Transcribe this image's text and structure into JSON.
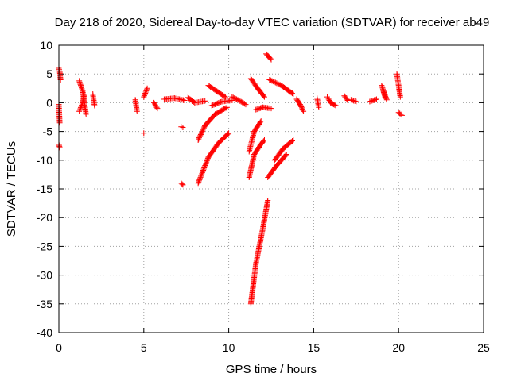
{
  "chart_data": {
    "type": "scatter",
    "title": "Day 218 of 2020, Sidereal Day-to-day VTEC variation (SDTVAR) for receiver ab49",
    "xlabel": "GPS time / hours",
    "ylabel": "SDTVAR / TECUs",
    "xlim": [
      0,
      25
    ],
    "ylim": [
      -40,
      10
    ],
    "x_ticks": [
      "0",
      "5",
      "10",
      "15",
      "20",
      "25"
    ],
    "y_ticks": [
      "10",
      "5",
      "0",
      "-5",
      "-10",
      "-15",
      "-20",
      "-25",
      "-30",
      "-35",
      "-40"
    ],
    "grid": true,
    "marker": "+",
    "color": "#ff0000",
    "tracks": [
      {
        "x": [
          0.0,
          0.05,
          0.1
        ],
        "y": [
          6.0,
          5.5,
          4.0
        ]
      },
      {
        "x": [
          0.0,
          0.05
        ],
        "y": [
          -0.3,
          -3.5
        ]
      },
      {
        "x": [
          0.0,
          0.05
        ],
        "y": [
          -7.2,
          -7.8
        ]
      },
      {
        "x": [
          1.2,
          1.4,
          1.6
        ],
        "y": [
          3.8,
          2.0,
          -2.0
        ]
      },
      {
        "x": [
          1.2,
          1.4,
          1.5
        ],
        "y": [
          -1.5,
          0.0,
          1.5
        ]
      },
      {
        "x": [
          2.0,
          2.1
        ],
        "y": [
          1.5,
          -0.5
        ]
      },
      {
        "x": [
          4.5,
          4.6
        ],
        "y": [
          0.5,
          -1.5
        ]
      },
      {
        "x": [
          5.0,
          5.2
        ],
        "y": [
          1.0,
          2.5
        ]
      },
      {
        "x": [
          5.0
        ],
        "y": [
          -5.3
        ]
      },
      {
        "x": [
          5.6,
          5.8
        ],
        "y": [
          0.0,
          -1.0
        ]
      },
      {
        "x": [
          6.2,
          6.8,
          7.4
        ],
        "y": [
          0.6,
          0.8,
          0.4
        ]
      },
      {
        "x": [
          7.2,
          7.3
        ],
        "y": [
          -4.2,
          -4.3
        ]
      },
      {
        "x": [
          7.2,
          7.3
        ],
        "y": [
          -14.0,
          -14.3
        ]
      },
      {
        "x": [
          7.6,
          8.0,
          8.6
        ],
        "y": [
          0.9,
          0.0,
          0.3
        ]
      },
      {
        "x": [
          8.8,
          9.3,
          9.8
        ],
        "y": [
          3.0,
          2.0,
          1.0
        ]
      },
      {
        "x": [
          9.0,
          9.6,
          10.2
        ],
        "y": [
          -0.5,
          0.2,
          0.4
        ]
      },
      {
        "x": [
          8.2,
          8.6,
          9.2,
          9.9
        ],
        "y": [
          -6.5,
          -4.0,
          -2.0,
          -0.8
        ]
      },
      {
        "x": [
          8.2,
          8.8,
          9.4,
          10.0
        ],
        "y": [
          -14.0,
          -9.5,
          -7.0,
          -5.3
        ]
      },
      {
        "x": [
          10.2,
          10.6,
          11.0
        ],
        "y": [
          1.0,
          0.4,
          -0.3
        ]
      },
      {
        "x": [
          11.3,
          11.7,
          12.1
        ],
        "y": [
          4.2,
          2.5,
          1.0
        ]
      },
      {
        "x": [
          11.2,
          11.5,
          11.9
        ],
        "y": [
          -8.5,
          -5.0,
          -3.2
        ]
      },
      {
        "x": [
          11.2,
          11.5,
          11.9,
          12.1
        ],
        "y": [
          -13.0,
          -9.0,
          -7.2,
          -6.5
        ]
      },
      {
        "x": [
          11.3,
          11.6,
          12.0,
          12.3
        ],
        "y": [
          -35.0,
          -28.0,
          -22.0,
          -17.0
        ]
      },
      {
        "x": [
          11.6,
          12.0,
          12.5
        ],
        "y": [
          -1.2,
          -0.8,
          -1.0
        ]
      },
      {
        "x": [
          12.2,
          12.5
        ],
        "y": [
          8.5,
          7.5
        ]
      },
      {
        "x": [
          12.4,
          13.1,
          13.8
        ],
        "y": [
          4.0,
          3.0,
          1.5
        ]
      },
      {
        "x": [
          12.3,
          12.8,
          13.4
        ],
        "y": [
          -13.0,
          -11.0,
          -9.0
        ]
      },
      {
        "x": [
          12.7,
          13.2,
          13.8
        ],
        "y": [
          -10.0,
          -8.0,
          -6.5
        ]
      },
      {
        "x": [
          14.0,
          14.2,
          14.4
        ],
        "y": [
          0.6,
          -0.3,
          -1.5
        ]
      },
      {
        "x": [
          15.2,
          15.3
        ],
        "y": [
          0.8,
          -0.8
        ]
      },
      {
        "x": [
          15.8,
          16.0,
          16.3
        ],
        "y": [
          1.0,
          0.0,
          -0.5
        ]
      },
      {
        "x": [
          16.8,
          17.0
        ],
        "y": [
          1.2,
          0.4
        ]
      },
      {
        "x": [
          17.2,
          17.5
        ],
        "y": [
          0.5,
          0.2
        ]
      },
      {
        "x": [
          18.3,
          18.7
        ],
        "y": [
          0.2,
          0.6
        ]
      },
      {
        "x": [
          19.0,
          19.3
        ],
        "y": [
          3.0,
          0.5
        ]
      },
      {
        "x": [
          19.1,
          19.2
        ],
        "y": [
          2.0,
          1.0
        ]
      },
      {
        "x": [
          19.9,
          20.1
        ],
        "y": [
          5.0,
          1.0
        ]
      },
      {
        "x": [
          20.0,
          20.2
        ],
        "y": [
          -1.7,
          -2.2
        ]
      }
    ]
  }
}
